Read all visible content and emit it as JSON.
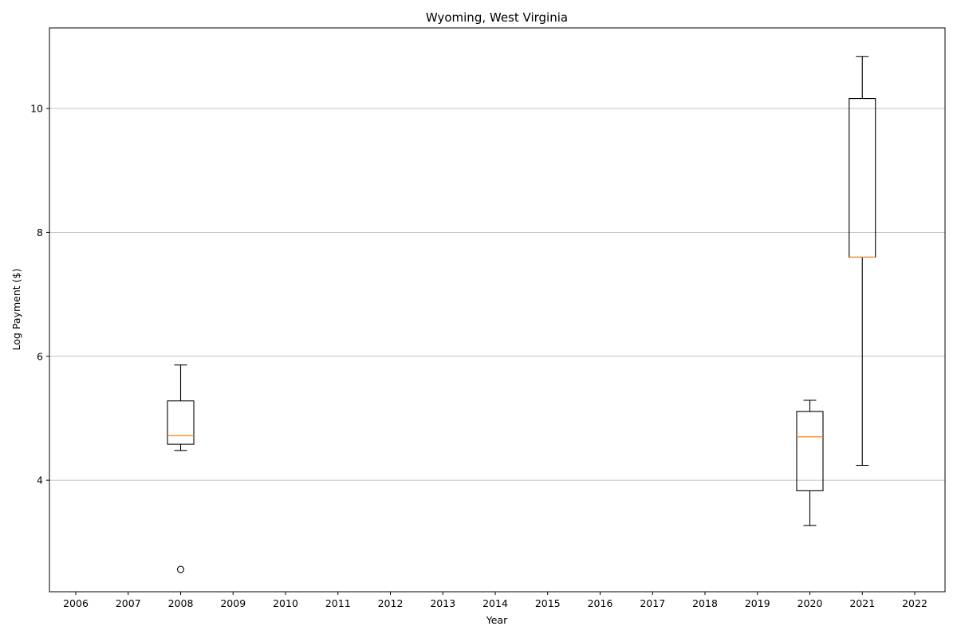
{
  "chart_data": {
    "type": "box",
    "title": "Wyoming, West Virginia",
    "xlabel": "Year",
    "ylabel": "Log Payment ($)",
    "categories": [
      "2006",
      "2007",
      "2008",
      "2009",
      "2010",
      "2011",
      "2012",
      "2013",
      "2014",
      "2015",
      "2016",
      "2017",
      "2018",
      "2019",
      "2020",
      "2021",
      "2022"
    ],
    "ylim": [
      2.2,
      11.3
    ],
    "yticks": [
      4,
      6,
      8,
      10
    ],
    "grid": "y",
    "colors": {
      "box": "#000000",
      "median": "#ff7f0e",
      "grid": "#b0b0b0"
    },
    "boxes": [
      {
        "category": "2008",
        "whisker_low": 4.48,
        "q1": 4.58,
        "median": 4.72,
        "q3": 5.28,
        "whisker_high": 5.86,
        "outliers": [
          2.56
        ]
      },
      {
        "category": "2020",
        "whisker_low": 3.27,
        "q1": 3.83,
        "median": 4.7,
        "q3": 5.11,
        "whisker_high": 5.29,
        "outliers": []
      },
      {
        "category": "2021",
        "whisker_low": 4.24,
        "q1": 7.6,
        "median": 7.6,
        "q3": 10.16,
        "whisker_high": 10.84,
        "outliers": []
      }
    ]
  }
}
